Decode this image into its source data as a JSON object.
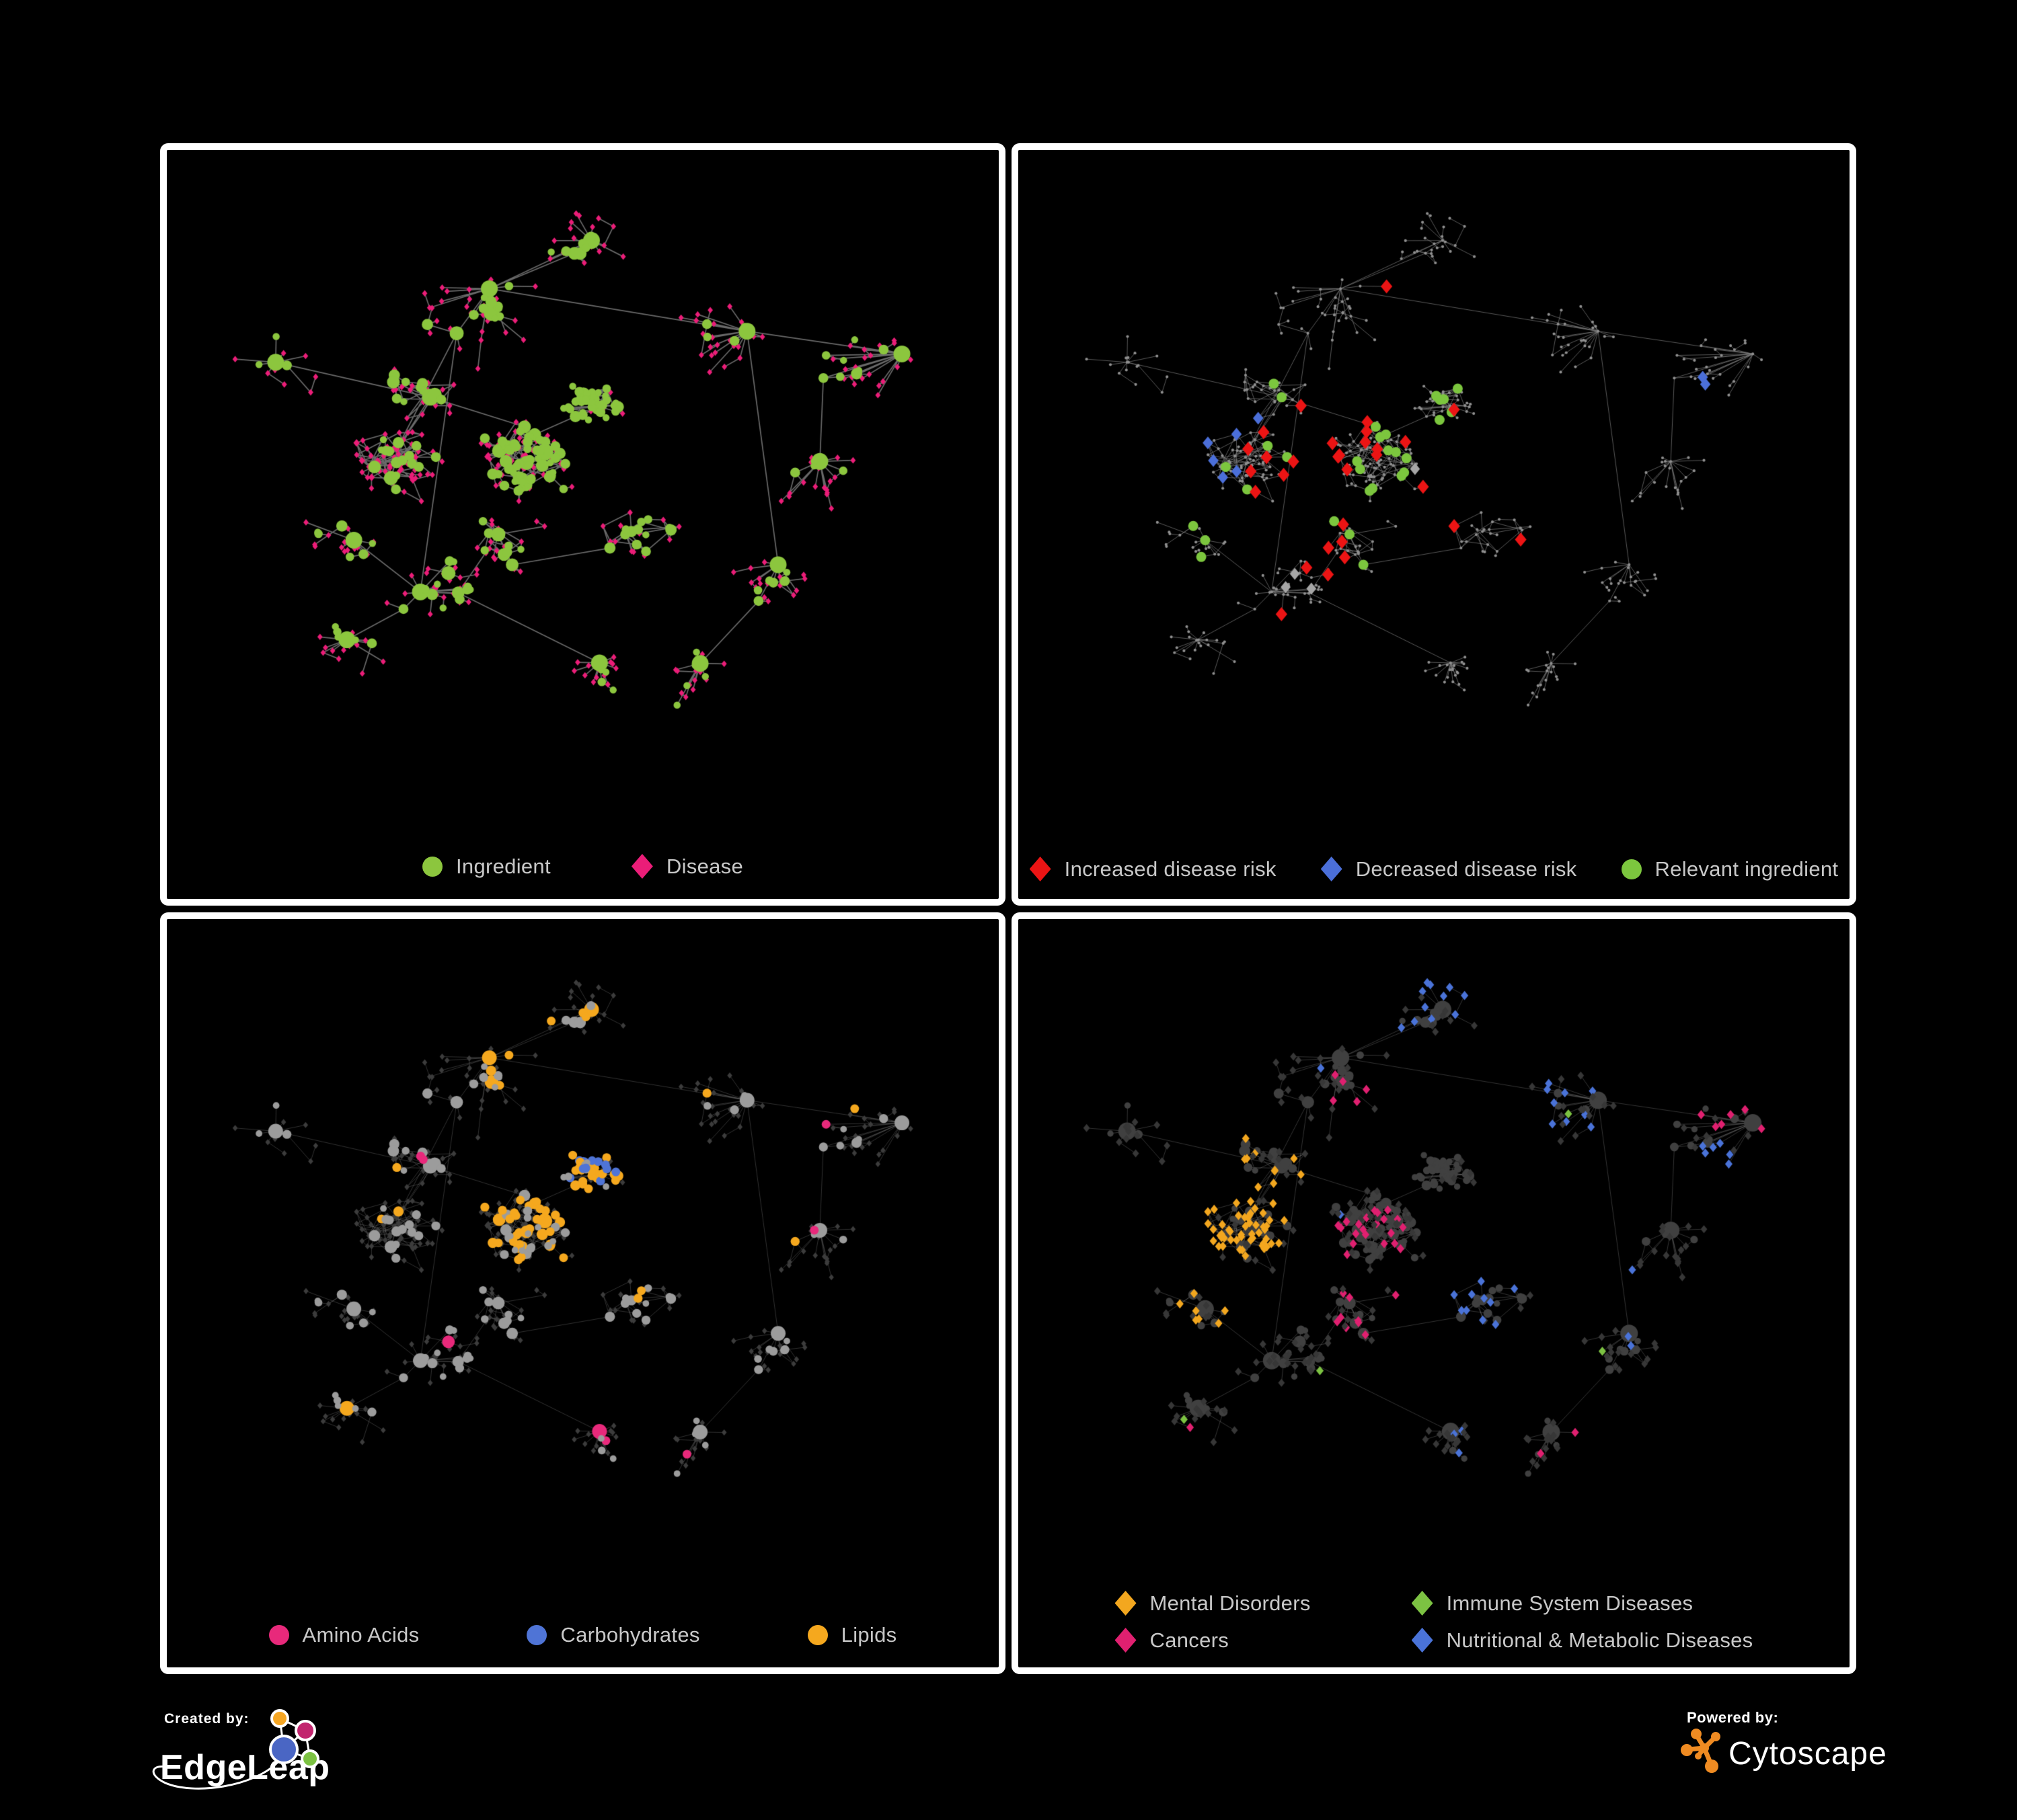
{
  "page": {
    "background": "#000000",
    "panel_border": "#ffffff"
  },
  "panels": [
    {
      "name": "ingredient-disease",
      "legend": [
        {
          "label": "Ingredient",
          "shape": "circle",
          "color": "#8CC63E"
        },
        {
          "label": "Disease",
          "shape": "diamond",
          "color": "#EB1D78"
        }
      ]
    },
    {
      "name": "disease-risk",
      "legend": [
        {
          "label": "Increased disease risk",
          "shape": "diamond",
          "color": "#EC1414"
        },
        {
          "label": "Decreased disease risk",
          "shape": "diamond",
          "color": "#4B6FD9"
        },
        {
          "label": "Relevant ingredient",
          "shape": "circle",
          "color": "#7CC63E"
        }
      ]
    },
    {
      "name": "nutrient-classes",
      "legend": [
        {
          "label": "Amino Acids",
          "shape": "circle",
          "color": "#E8297B"
        },
        {
          "label": "Carbohydrates",
          "shape": "circle",
          "color": "#4F74D6"
        },
        {
          "label": "Lipids",
          "shape": "circle",
          "color": "#F5A81E"
        }
      ]
    },
    {
      "name": "disease-categories",
      "legend": [
        {
          "label": "Mental Disorders",
          "shape": "diamond",
          "color": "#F3A71F"
        },
        {
          "label": "Immune System Diseases",
          "shape": "diamond",
          "color": "#7CC242"
        },
        {
          "label": "Cancers",
          "shape": "diamond",
          "color": "#E02070"
        },
        {
          "label": "Nutritional & Metabolic Diseases",
          "shape": "diamond",
          "color": "#4A73D8"
        }
      ]
    }
  ],
  "footer": {
    "created_by": "Created by:",
    "brand": "EdgeLeap",
    "powered_by": "Powered by:",
    "engine": "Cytoscape",
    "cytoscape_orange": "#EF8B22",
    "edgeleap_colors": {
      "orange": "#F5A623",
      "magenta": "#C2256E",
      "blue": "#4A66C4",
      "green": "#7CC242"
    }
  },
  "network": {
    "seed": 11,
    "node_count": 630,
    "p1_edge_color": "#6F6F6F",
    "thin_edge_color": "#8A8A8A",
    "muted_node_color": "#8F8F8F",
    "neutral_diamond_color": "#A6A6A6",
    "dark_diamond_color": "#3C3C3C",
    "dark_circle_color": "#404040",
    "light_circle_color": "#9C9C9C"
  }
}
